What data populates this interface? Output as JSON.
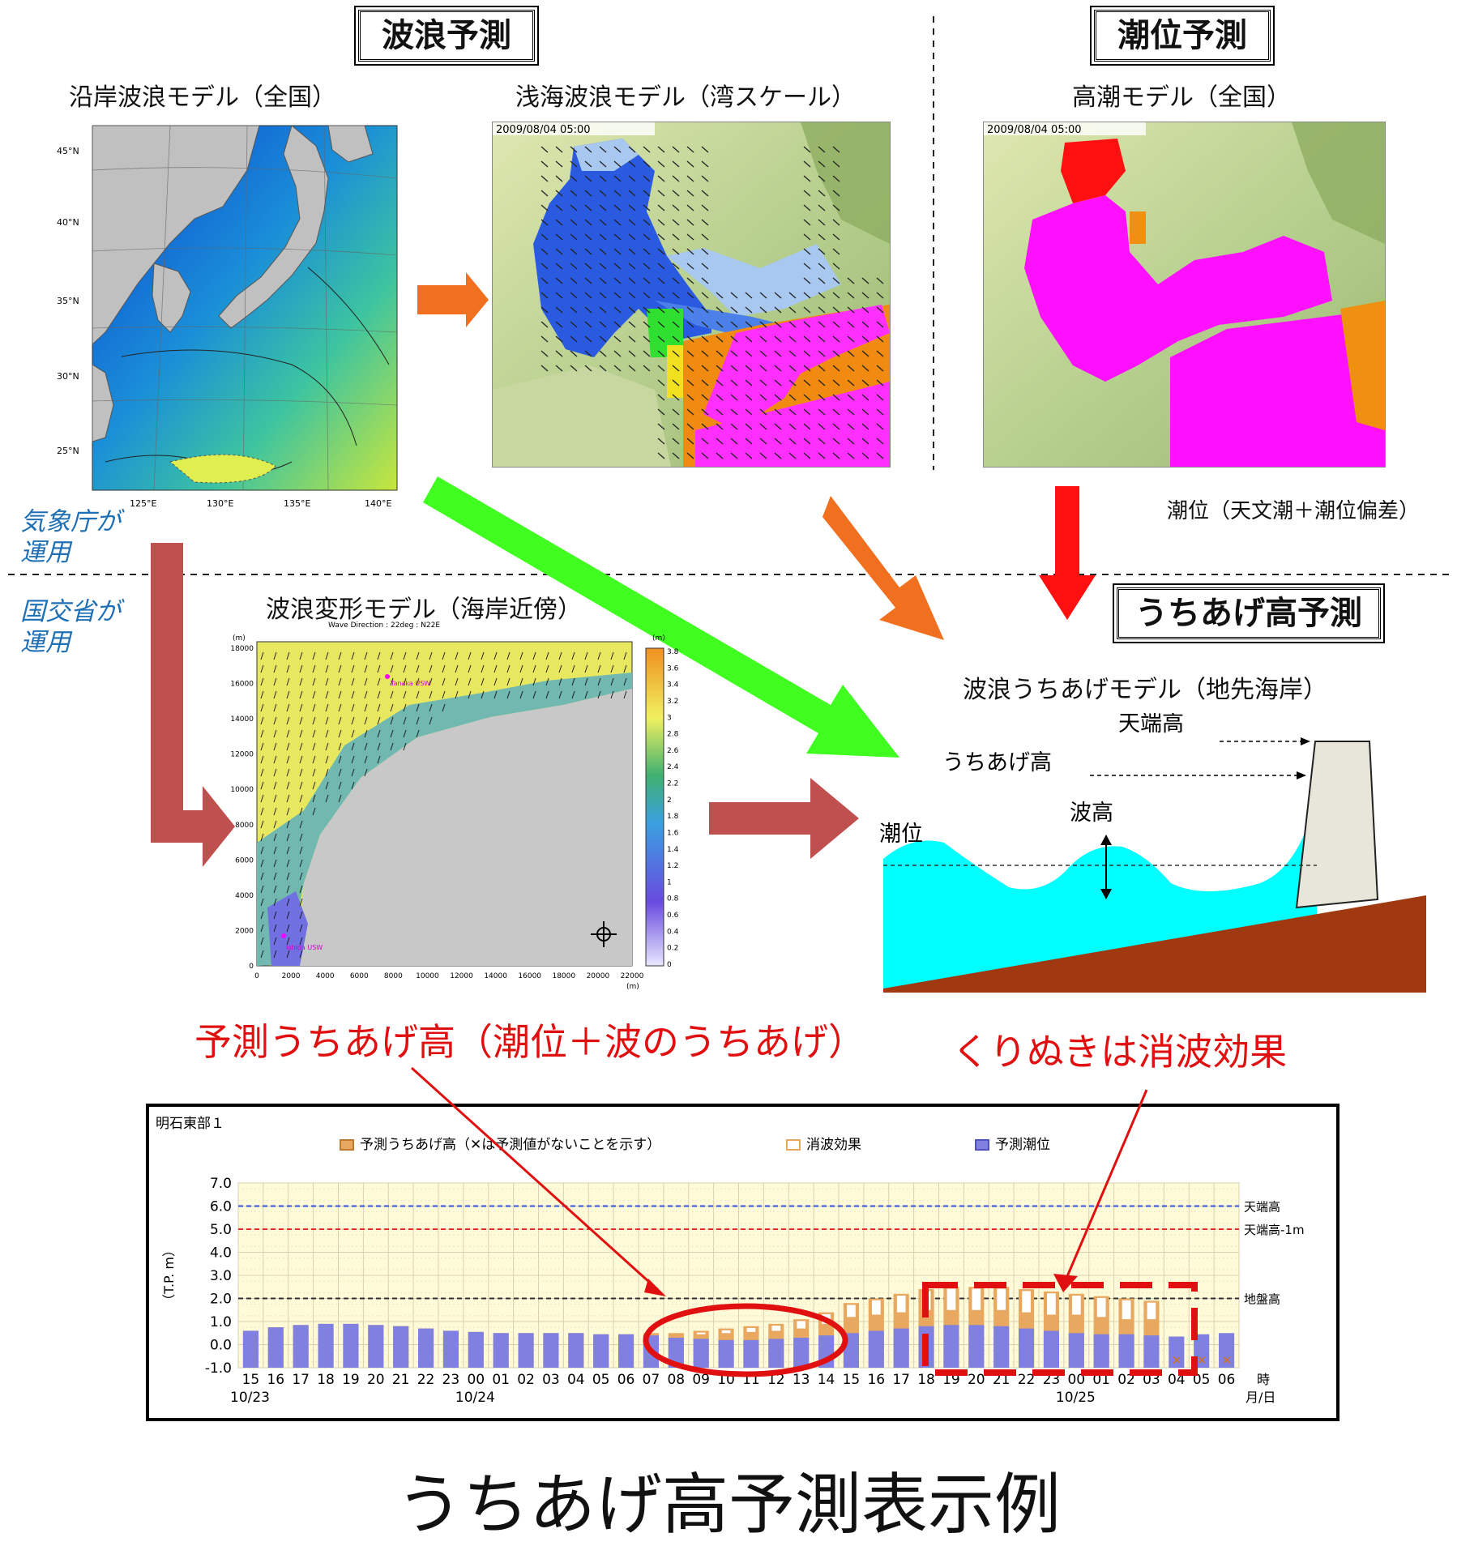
{
  "sections": {
    "wave_forecast": "波浪予測",
    "tide_forecast": "潮位予測",
    "runup_forecast": "うちあげ高予測"
  },
  "models": {
    "coastal_wave": "沿岸波浪モデル（全国）",
    "shallow_wave": "浅海波浪モデル（湾スケール）",
    "high_tide": "高潮モデル（全国）",
    "wave_transform": "波浪変形モデル（海岸近傍）",
    "wave_runup": "波浪うちあげモデル（地先海岸）"
  },
  "timestamps": {
    "shallow": "2009/08/04 05:00",
    "tide": "2009/08/04 05:00"
  },
  "tide_note": "潮位（天文潮＋潮位偏差）",
  "operators": {
    "jma": [
      "気象庁が",
      "運用"
    ],
    "mlit": [
      "国交省が",
      "運用"
    ]
  },
  "map_axes": {
    "lat": [
      "45°N",
      "40°N",
      "35°N",
      "30°N",
      "25°N"
    ],
    "lon": [
      "125°E",
      "130°E",
      "135°E",
      "140°E"
    ]
  },
  "transform_plot": {
    "header": "Wave Direction : 22deg : N22E",
    "unit_y": "(m)",
    "unit_x": "(m)",
    "unit_cb": "(m)",
    "y_ticks": [
      "18000",
      "16000",
      "14000",
      "12000",
      "10000",
      "8000",
      "6000",
      "4000",
      "2000",
      "0"
    ],
    "x_ticks": [
      "0",
      "2000",
      "4000",
      "6000",
      "8000",
      "10000",
      "12000",
      "14000",
      "16000",
      "18000",
      "20000",
      "22000"
    ],
    "cb_ticks": [
      "3.8",
      "3.6",
      "3.4",
      "3.2",
      "3",
      "2.8",
      "2.6",
      "2.4",
      "2.2",
      "2",
      "1.8",
      "1.6",
      "1.4",
      "1.2",
      "1",
      "0.8",
      "0.6",
      "0.4",
      "0.2",
      "0"
    ],
    "station1": "Tanaka USW",
    "station2": "Ishida USW"
  },
  "diagram": {
    "crest_height": "天端高",
    "runup_height": "うちあげ高",
    "wave_height": "波高",
    "tide_level": "潮位"
  },
  "captions": {
    "predicted_runup": "予測うちあげ高（潮位＋波のうちあげ）",
    "hollow_effect": "くりぬきは消波効果"
  },
  "footer_title": "うちあげ高予測表示例",
  "colors": {
    "bar_tide": "#8080e0",
    "bar_runup": "#e8a860",
    "plot_bg": "#fffbd8",
    "annot_red": "#e01010"
  },
  "chart_data": {
    "type": "bar",
    "title": "明石東部１",
    "legend": [
      "予測うちあげ高（✕は予測値がないことを示す）",
      "消波効果",
      "予測潮位"
    ],
    "ylabel": "（T.P. m）",
    "ylim": [
      -1.0,
      7.0
    ],
    "y_ticks": [
      "7.0",
      "6.0",
      "5.0",
      "4.0",
      "3.0",
      "2.0",
      "1.0",
      "0.0",
      "-1.0"
    ],
    "x_unit": [
      "時",
      "月/日"
    ],
    "categories": [
      "15",
      "16",
      "17",
      "18",
      "19",
      "20",
      "21",
      "22",
      "23",
      "00",
      "01",
      "02",
      "03",
      "04",
      "05",
      "06",
      "07",
      "08",
      "09",
      "10",
      "11",
      "12",
      "13",
      "14",
      "15",
      "16",
      "17",
      "18",
      "19",
      "20",
      "21",
      "22",
      "23",
      "00",
      "01",
      "02",
      "03",
      "04",
      "05",
      "06"
    ],
    "dates": [
      {
        "index": 0,
        "label": "10/23"
      },
      {
        "index": 9,
        "label": "10/24"
      },
      {
        "index": 33,
        "label": "10/25"
      }
    ],
    "series": [
      {
        "name": "予測潮位",
        "values": [
          0.6,
          0.75,
          0.85,
          0.9,
          0.9,
          0.85,
          0.8,
          0.7,
          0.6,
          0.55,
          0.5,
          0.5,
          0.5,
          0.5,
          0.45,
          0.45,
          0.4,
          0.3,
          0.25,
          0.2,
          0.2,
          0.25,
          0.3,
          0.4,
          0.5,
          0.6,
          0.7,
          0.8,
          0.85,
          0.85,
          0.8,
          0.7,
          0.6,
          0.5,
          0.45,
          0.45,
          0.4,
          0.35,
          0.45,
          0.5
        ]
      },
      {
        "name": "予測うちあげ高",
        "values": [
          0.6,
          0.75,
          0.85,
          0.9,
          0.9,
          0.85,
          0.8,
          0.7,
          0.6,
          0.55,
          0.5,
          0.5,
          0.5,
          0.5,
          0.45,
          0.45,
          0.5,
          0.5,
          0.6,
          0.7,
          0.8,
          0.9,
          1.1,
          1.4,
          1.8,
          2.0,
          2.2,
          2.4,
          2.5,
          2.5,
          2.5,
          2.4,
          2.3,
          2.2,
          2.1,
          2.0,
          1.9,
          null,
          null,
          null
        ]
      },
      {
        "name": "消波効果",
        "values": [
          0,
          0,
          0,
          0,
          0,
          0,
          0,
          0,
          0,
          0,
          0,
          0,
          0,
          0,
          0,
          0,
          0,
          0,
          0.15,
          0.2,
          0.25,
          0.3,
          0.4,
          0.5,
          0.6,
          0.7,
          0.8,
          0.9,
          1.0,
          1.0,
          1.0,
          1.0,
          1.0,
          0.9,
          0.9,
          0.9,
          0.8,
          0,
          0,
          0
        ]
      }
    ],
    "missing": [
      37,
      38,
      39
    ],
    "reference_lines": [
      {
        "label": "天端高",
        "value": 6.0,
        "color": "#3050e0"
      },
      {
        "label": "天端高-1m",
        "value": 5.0,
        "color": "#e03030"
      },
      {
        "label": "地盤高",
        "value": 2.0,
        "color": "#303030"
      }
    ]
  }
}
